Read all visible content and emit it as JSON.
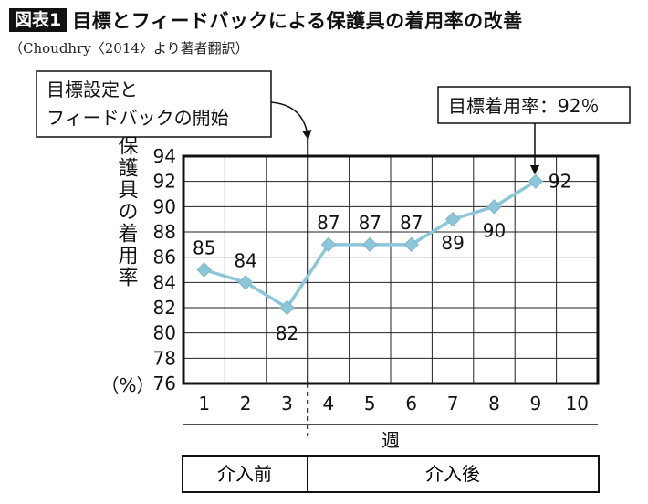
{
  "header": {
    "badge": "図表1",
    "title": "目標とフィードバックによる保護具の着用率の改善"
  },
  "source": "（Choudhry〈2014〉より著者翻訳）",
  "callouts": {
    "intervention_line1": "目標設定と",
    "intervention_line2": "フィードバックの開始",
    "goal": "目標着用率：92％"
  },
  "phases": {
    "before": "介入前",
    "after": "介入後"
  },
  "chart_data": {
    "type": "line",
    "title": "",
    "xlabel": "週",
    "ylabel": "保護具の着用率",
    "yunit": "（%）",
    "x": [
      1,
      2,
      3,
      4,
      5,
      6,
      7,
      8,
      9
    ],
    "x_ticks": [
      "1",
      "2",
      "3",
      "4",
      "5",
      "6",
      "7",
      "8",
      "9",
      "10"
    ],
    "ylim": [
      76,
      94
    ],
    "y_ticks": [
      "76",
      "78",
      "80",
      "82",
      "84",
      "86",
      "88",
      "90",
      "92",
      "94"
    ],
    "series": [
      {
        "values": [
          85,
          84,
          82,
          87,
          87,
          87,
          89,
          90,
          92
        ]
      }
    ],
    "data_labels": [
      "85",
      "84",
      "82",
      "87",
      "87",
      "87",
      "89",
      "90",
      "92"
    ],
    "intervention_after_week": 3,
    "goal": 92,
    "grid": true,
    "line_color": "#8ec6d9"
  }
}
